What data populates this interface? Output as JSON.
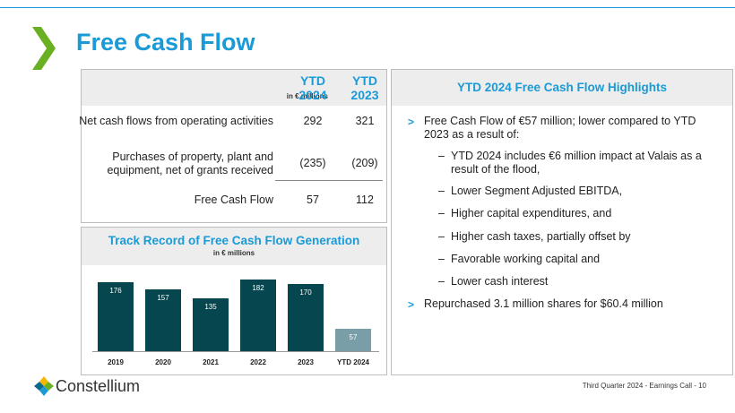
{
  "slide": {
    "title": "Free Cash Flow",
    "footer": "Third Quarter 2024 -  Earnings Call - 10",
    "brand": "Constellium",
    "colors": {
      "accent": "#1a9ad6",
      "bar": "#05464f",
      "bar_ytd": "#7a9ea7",
      "chevron": "#6ab023"
    }
  },
  "table": {
    "unit_label": "in € millions",
    "col1_header": "YTD\n2024",
    "col2_header": "YTD\n2023",
    "rows": [
      {
        "label": "Net cash flows from operating activities",
        "v2024": "292",
        "v2023": "321"
      },
      {
        "label": "Purchases of property, plant and equipment, net of grants received",
        "v2024": "(235)",
        "v2023": "(209)"
      },
      {
        "label": "Free Cash Flow",
        "v2024": "57",
        "v2023": "112"
      }
    ]
  },
  "chart_data": {
    "type": "bar",
    "title": "Track Record of Free Cash Flow Generation",
    "subtitle": "in € millions",
    "categories": [
      "2019",
      "2020",
      "2021",
      "2022",
      "2023",
      "YTD 2024"
    ],
    "values": [
      176,
      157,
      135,
      182,
      170,
      57
    ],
    "xlabel": "",
    "ylabel": "",
    "ylim": [
      0,
      200
    ]
  },
  "highlights": {
    "title": "YTD 2024 Free Cash Flow Highlights",
    "bullet1": "Free Cash Flow of €57 million; lower compared to YTD 2023 as a result of:",
    "sub": [
      "YTD 2024 includes €6 million impact at Valais as a result of the flood,",
      "Lower Segment Adjusted EBITDA,",
      "Higher capital expenditures, and",
      "Higher cash taxes, partially offset by",
      "Favorable working capital and",
      "Lower cash interest"
    ],
    "bullet2": "Repurchased 3.1 million shares for $60.4 million",
    "bullet_marker": ">",
    "dash_marker": "–"
  }
}
